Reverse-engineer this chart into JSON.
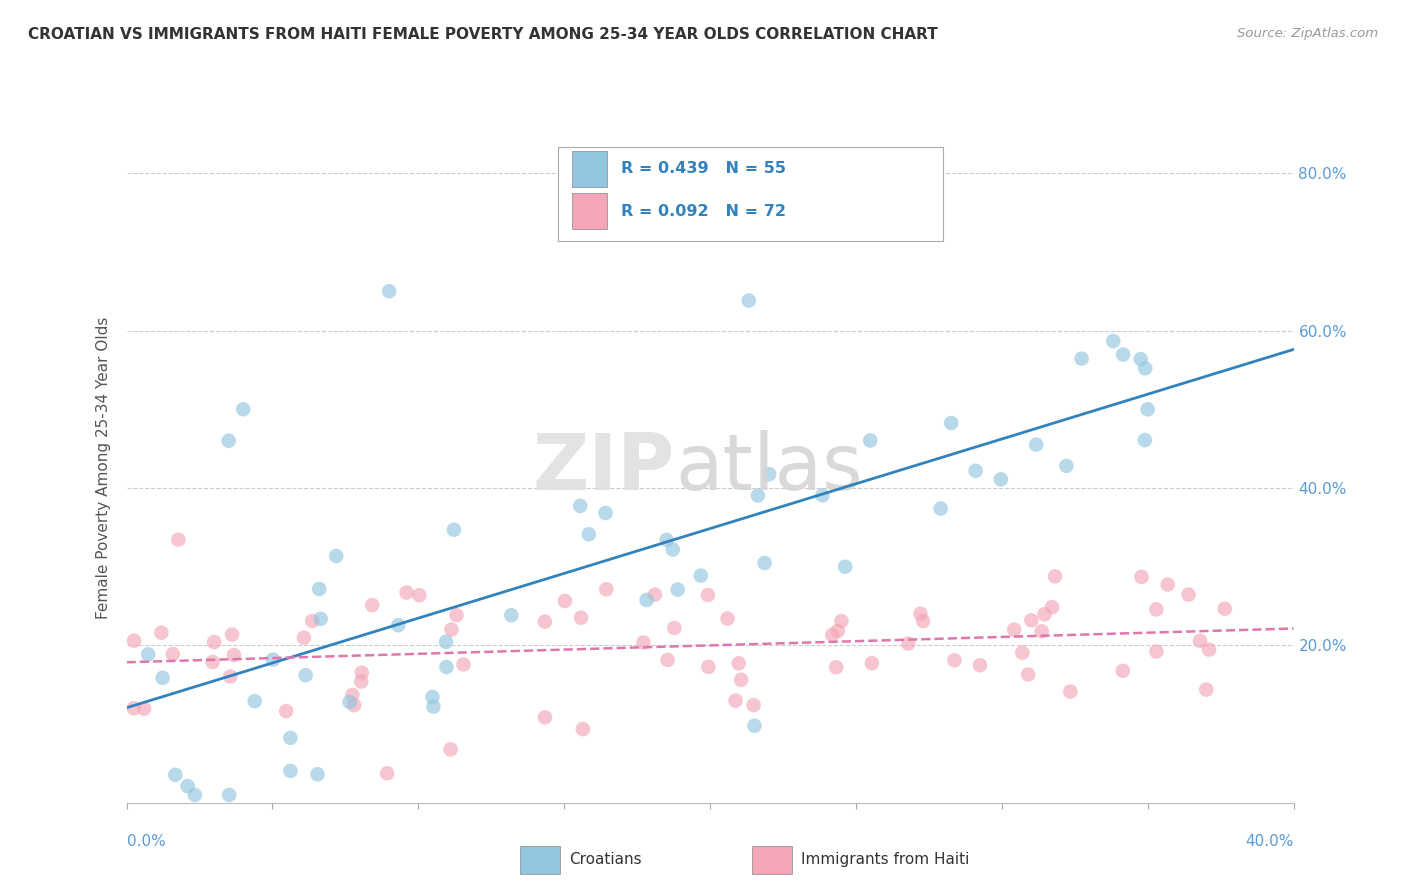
{
  "title": "CROATIAN VS IMMIGRANTS FROM HAITI FEMALE POVERTY AMONG 25-34 YEAR OLDS CORRELATION CHART",
  "source": "Source: ZipAtlas.com",
  "ylabel": "Female Poverty Among 25-34 Year Olds",
  "x_range": [
    0.0,
    0.4
  ],
  "y_range": [
    0.0,
    0.85
  ],
  "legend1_R": "0.439",
  "legend1_N": "55",
  "legend2_R": "0.092",
  "legend2_N": "72",
  "blue_color": "#92c5de",
  "pink_color": "#f4a6b8",
  "blue_line_color": "#3182bd",
  "pink_line_color": "#de77ae",
  "cr_seed": 42,
  "ht_seed": 99,
  "watermark_zip_color": "#e0e0e0",
  "watermark_atlas_color": "#d5d5d5",
  "title_color": "#333333",
  "source_color": "#999999",
  "tick_label_color": "#5b9bd5",
  "ylabel_color": "#555555",
  "grid_color": "#cccccc",
  "bottom_label_color": "#5b9bd5"
}
